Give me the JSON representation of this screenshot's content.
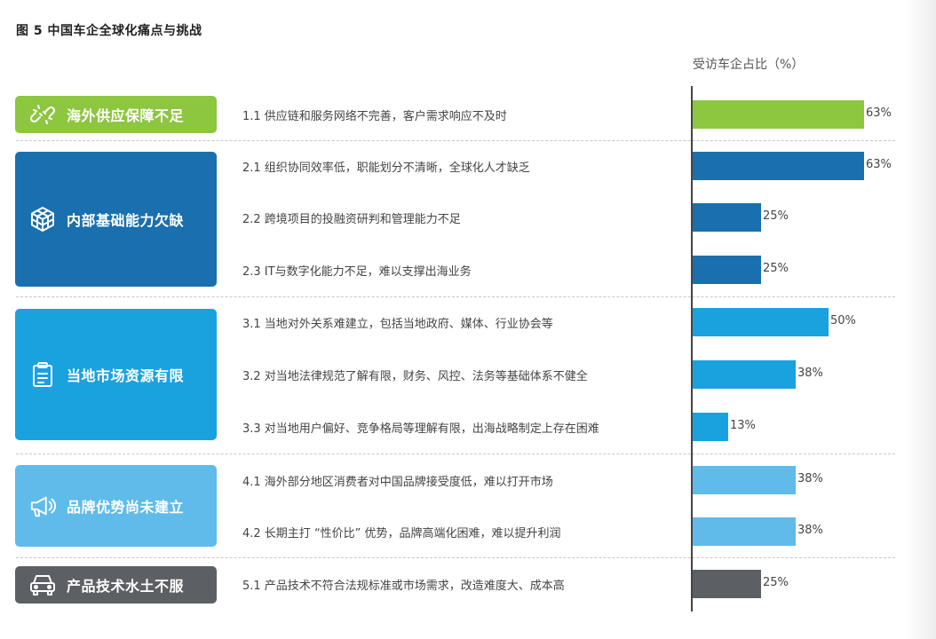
{
  "figure_title": "图 5 中国车企全球化痛点与挑战",
  "axis_title": "受访车企占比（%）",
  "colors": {
    "group1": "#8dc63f",
    "group2": "#1a6fae",
    "group3": "#1aa2df",
    "group4": "#5fbbea",
    "group5": "#5c5f63"
  },
  "groups": [
    {
      "label": "海外供应保障不足",
      "icon": "broken-link-icon"
    },
    {
      "label": "内部基础能力欠缺",
      "icon": "cube-network-icon"
    },
    {
      "label": "当地市场资源有限",
      "icon": "clipboard-icon"
    },
    {
      "label": "品牌优势尚未建立",
      "icon": "megaphone-icon"
    },
    {
      "label": "产品技术水土不服",
      "icon": "car-icon"
    }
  ],
  "chart_data": {
    "type": "bar",
    "orientation": "horizontal",
    "title": "图 5 中国车企全球化痛点与挑战",
    "xlabel": "受访车企占比（%）",
    "xlim": [
      0,
      63
    ],
    "categories": [
      "1.1 供应链和服务网络不完善，客户需求响应不及时",
      "2.1 组织协同效率低，职能划分不清晰，全球化人才缺乏",
      "2.2 跨境项目的投融资研判和管理能力不足",
      "2.3 IT与数字化能力不足，难以支撑出海业务",
      "3.1 当地对外关系难建立，包括当地政府、媒体、行业协会等",
      "3.2 对当地法律规范了解有限，财务、风控、法务等基础体系不健全",
      "3.3 对当地用户偏好、竞争格局等理解有限，出海战略制定上存在困难",
      "4.1 海外部分地区消费者对中国品牌接受度低，难以打开市场",
      "4.2 长期主打 “性价比” 优势，品牌高端化困难，难以提升利润",
      "5.1 产品技术不符合法规标准或市场需求，改造难度大、成本高"
    ],
    "values": [
      63,
      63,
      25,
      25,
      50,
      38,
      13,
      38,
      38,
      25
    ],
    "value_labels": [
      "63%",
      "63%",
      "25%",
      "25%",
      "50%",
      "38%",
      "13%",
      "38%",
      "38%",
      "25%"
    ],
    "group_index": [
      0,
      1,
      1,
      1,
      2,
      2,
      2,
      3,
      3,
      4
    ]
  }
}
